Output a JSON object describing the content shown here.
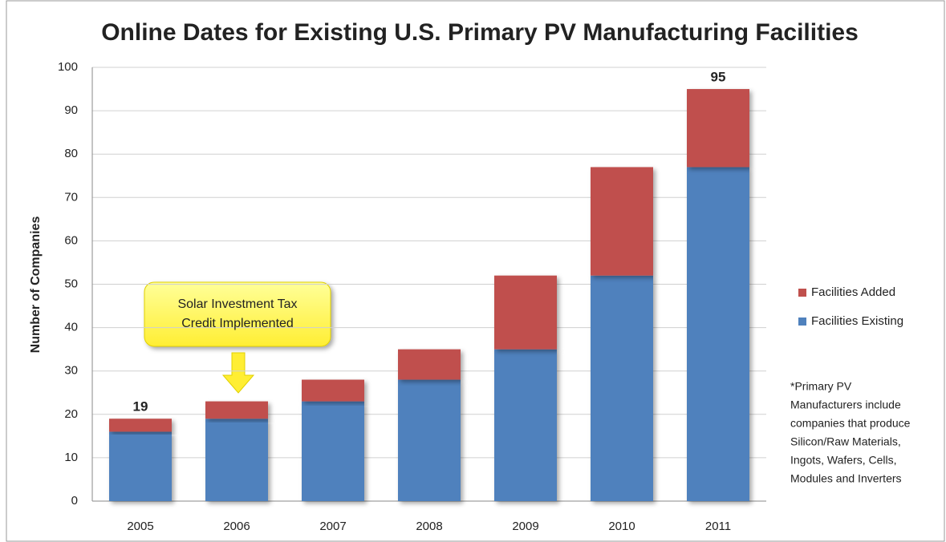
{
  "chart_data": {
    "type": "stacked_bar",
    "title": "Online Dates for Existing U.S. Primary PV Manufacturing Facilities",
    "y_label": "Number  of Companies",
    "categories": [
      "2005",
      "2006",
      "2007",
      "2008",
      "2009",
      "2010",
      "2011"
    ],
    "series": [
      {
        "name": "Facilities Existing",
        "color": "#4f81bd",
        "values": [
          16,
          19,
          23,
          28,
          35,
          52,
          77
        ]
      },
      {
        "name": "Facilities Added",
        "color": "#c0504d",
        "values": [
          3,
          4,
          5,
          7,
          17,
          25,
          18
        ]
      }
    ],
    "total_labels": [
      19,
      null,
      null,
      null,
      null,
      null,
      95
    ],
    "ylim": [
      0,
      100
    ],
    "yticks": [
      0,
      10,
      20,
      30,
      40,
      50,
      60,
      70,
      80,
      90,
      100
    ],
    "grid": true,
    "legend": "right",
    "callout": [
      "Solar Investment Tax",
      "Credit  Implemented"
    ],
    "footnote": [
      "*Primary PV",
      "Manufacturers include",
      "companies that produce",
      "Silicon/Raw Materials,",
      "Ingots, Wafers, Cells,",
      "Modules and Inverters"
    ]
  }
}
